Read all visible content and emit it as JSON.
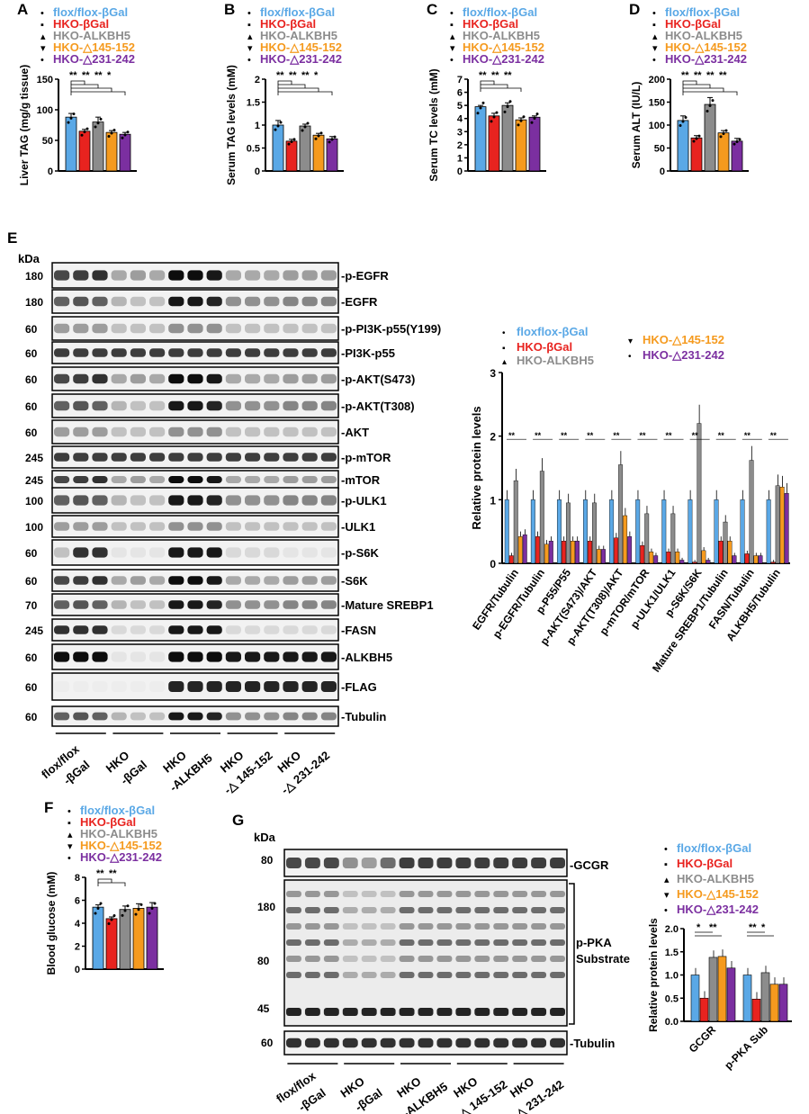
{
  "colors": {
    "flox": "#5aa8e6",
    "hkog": "#e8231f",
    "alk": "#8c8c8c",
    "d145": "#f59a1e",
    "d231": "#7b2fa0"
  },
  "legend5": [
    "flox/flox-βGal",
    "HKO-βGal",
    "HKO-ALKBH5",
    "HKO-△145-152",
    "HKO-△231-242"
  ],
  "legendE": [
    "floxflox-βGal",
    "HKO-βGal",
    "HKO-ALKBH5",
    "HKO-△145-152",
    "HKO-△231-242"
  ],
  "blot_groups": [
    "flox/flox",
    "-βGal",
    "HKO",
    "-βGal",
    "HKO",
    "-ALKBH5",
    "HKO",
    "-△ 145-152",
    "HKO",
    "-△ 231-242"
  ],
  "blot_groups_g": [
    "flox/flox",
    "-βGal",
    "HKO",
    "-βGal",
    "HKO",
    "-ALKBH5",
    "HKO",
    "-△ 145-152",
    "HKO",
    "-△ 231-242"
  ],
  "panelE_blots": [
    {
      "kda": "180",
      "label": "p-EGFR"
    },
    {
      "kda": "180",
      "label": "EGFR"
    },
    {
      "kda": "60",
      "label": "p-PI3K-p55(Y199)"
    },
    {
      "kda": "60",
      "label": "PI3K-p55"
    },
    {
      "kda": "60",
      "label": "p-AKT(S473)"
    },
    {
      "kda": "60",
      "label": "p-AKT(T308)"
    },
    {
      "kda": "60",
      "label": "AKT"
    },
    {
      "kda": "245",
      "label": "p-mTOR"
    },
    {
      "kda": "245",
      "label": "mTOR"
    },
    {
      "kda": "100",
      "label": "p-ULK1"
    },
    {
      "kda": "100",
      "label": "ULK1"
    },
    {
      "kda": "60",
      "label": "p-S6K"
    },
    {
      "kda": "60",
      "label": "S6K"
    },
    {
      "kda": "70",
      "label": "Mature SREBP1"
    },
    {
      "kda": "245",
      "label": "FASN"
    },
    {
      "kda": "60",
      "label": "ALKBH5"
    },
    {
      "kda": "60",
      "label": "FLAG"
    },
    {
      "kda": "60",
      "label": "Tubulin"
    }
  ],
  "panelG_blots": {
    "kda_gcgr": "80",
    "kda_pka": [
      "180",
      "80",
      "45"
    ],
    "kda_tub": "60",
    "gcgr": "GCGR",
    "pka": "p-PKA\nSubstrate",
    "tub": "Tubulin"
  },
  "kda_label": "kDa",
  "chart_data": [
    {
      "id": "A",
      "letter": "A",
      "type": "bar",
      "ylabel": "Liver TAG (mg/g tissue)",
      "ylim": [
        0,
        150
      ],
      "yticks": [
        0,
        50,
        100,
        150
      ],
      "values": [
        88,
        65,
        80,
        63,
        60
      ],
      "errors": [
        6,
        3,
        8,
        3,
        3
      ],
      "sig": [
        "**",
        "**",
        "**",
        "*"
      ]
    },
    {
      "id": "B",
      "letter": "B",
      "type": "bar",
      "ylabel": "Serum TAG levels (mM)",
      "ylim": [
        0,
        2.0
      ],
      "yticks": [
        0.0,
        0.5,
        1.0,
        1.5,
        2.0
      ],
      "values": [
        1.0,
        0.65,
        0.98,
        0.78,
        0.7
      ],
      "errors": [
        0.1,
        0.04,
        0.04,
        0.04,
        0.05
      ],
      "sig": [
        "**",
        "**",
        "**",
        "*"
      ]
    },
    {
      "id": "C",
      "letter": "C",
      "type": "bar",
      "ylabel": "Serum TC levels (mM)",
      "ylim": [
        0,
        7
      ],
      "yticks": [
        0,
        1,
        2,
        3,
        4,
        5,
        6,
        7
      ],
      "values": [
        4.9,
        4.2,
        5.0,
        3.9,
        4.1
      ],
      "errors": [
        0.1,
        0.2,
        0.2,
        0.15,
        0.1
      ],
      "sig": [
        "**",
        "**",
        "**"
      ]
    },
    {
      "id": "D",
      "letter": "D",
      "type": "bar",
      "ylabel": "Serum ALT (IU/L)",
      "ylim": [
        0,
        200
      ],
      "yticks": [
        0,
        50,
        100,
        150,
        200
      ],
      "values": [
        110,
        72,
        145,
        83,
        65
      ],
      "errors": [
        10,
        5,
        15,
        5,
        6
      ],
      "sig": [
        "**",
        "**",
        "**",
        "**"
      ]
    },
    {
      "id": "E",
      "type": "bar",
      "ylabel": "Relative protein levels",
      "ylim": [
        0,
        3
      ],
      "yticks": [
        0,
        1,
        2,
        3
      ],
      "categories": [
        "EGFR/Tubulin",
        "p-EGFR/Tubulin",
        "p-P55/P55",
        "p-AKT(S473)/AKT",
        "p-AKT(T308)/AKT",
        "p-mTOR/mTOR",
        "p-ULK1/ULK1",
        "p-S6K/S6K",
        "Mature SREBP1/Tubulin",
        "FASN/Tubulin",
        "ALKBH5/Tubulin"
      ],
      "series": [
        {
          "name": "floxflox-βGal",
          "values": [
            1.0,
            1.0,
            1.0,
            1.0,
            1.0,
            1.0,
            1.0,
            1.0,
            1.0,
            1.0,
            1.0
          ]
        },
        {
          "name": "HKO-βGal",
          "values": [
            0.12,
            0.42,
            0.35,
            0.35,
            0.4,
            0.28,
            0.18,
            0.02,
            0.35,
            0.15,
            0.02
          ]
        },
        {
          "name": "HKO-ALKBH5",
          "values": [
            1.3,
            1.45,
            0.95,
            0.95,
            1.55,
            0.78,
            0.78,
            2.2,
            0.65,
            1.62,
            1.22
          ]
        },
        {
          "name": "HKO-△145-152",
          "values": [
            0.42,
            0.3,
            0.35,
            0.22,
            0.75,
            0.18,
            0.18,
            0.2,
            0.35,
            0.12,
            1.2
          ]
        },
        {
          "name": "HKO-△231-242",
          "values": [
            0.45,
            0.35,
            0.35,
            0.22,
            0.42,
            0.12,
            0.05,
            0.05,
            0.12,
            0.12,
            1.1
          ]
        }
      ]
    },
    {
      "id": "F",
      "letter": "F",
      "type": "bar",
      "ylabel": "Blood glucose (mM)",
      "ylim": [
        0,
        8
      ],
      "yticks": [
        0,
        2,
        4,
        6,
        8
      ],
      "values": [
        5.4,
        4.4,
        5.2,
        5.3,
        5.4
      ],
      "errors": [
        0.2,
        0.15,
        0.3,
        0.4,
        0.4
      ],
      "sig": [
        "**",
        "**"
      ]
    },
    {
      "id": "G",
      "type": "bar",
      "ylabel": "Relative protein levels",
      "ylim": [
        0,
        2.0
      ],
      "yticks": [
        0.0,
        0.5,
        1.0,
        1.5,
        2.0
      ],
      "categories": [
        "GCGR",
        "p-PKA Sub"
      ],
      "series": [
        {
          "name": "flox/flox-βGal",
          "values": [
            1.0,
            1.0
          ]
        },
        {
          "name": "HKO-βGal",
          "values": [
            0.5,
            0.48
          ]
        },
        {
          "name": "HKO-ALKBH5",
          "values": [
            1.38,
            1.05
          ]
        },
        {
          "name": "HKO-△145-152",
          "values": [
            1.4,
            0.8
          ]
        },
        {
          "name": "HKO-△231-242",
          "values": [
            1.15,
            0.8
          ]
        }
      ],
      "sig": [
        "*",
        "**",
        "**",
        "*"
      ]
    }
  ],
  "panel_letters": {
    "E": "E",
    "G": "G"
  }
}
